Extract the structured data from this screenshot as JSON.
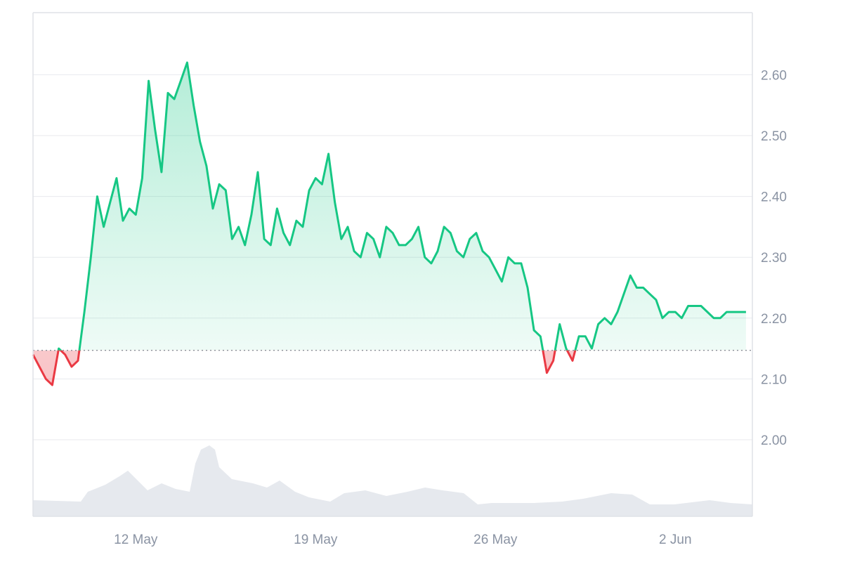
{
  "chart_data": {
    "type": "area",
    "title": "",
    "xlabel": "",
    "ylabel": "",
    "ylim": [
      1.88,
      2.72
    ],
    "xlim": [
      "2025-05-08",
      "2025-06-05"
    ],
    "grid": true,
    "legend": "none",
    "y_ticks": [
      2.0,
      2.1,
      2.2,
      2.3,
      2.4,
      2.5,
      2.6
    ],
    "y_tick_labels": [
      "2.00",
      "2.10",
      "2.20",
      "2.30",
      "2.40",
      "2.50",
      "2.60"
    ],
    "x_ticks": [
      {
        "date": "2025-05-12",
        "label": "12 May"
      },
      {
        "date": "2025-05-19",
        "label": "19 May"
      },
      {
        "date": "2025-05-26",
        "label": "26 May"
      },
      {
        "date": "2025-06-02",
        "label": "2 Jun"
      }
    ],
    "reference_value": 2.147,
    "colors": {
      "up_line": "#16c784",
      "down_line": "#ea3943",
      "up_fill": "#16c784",
      "down_fill": "#ea3943",
      "volume": "#e6e9ee"
    },
    "series": [
      {
        "type": "line",
        "x": [
          "2025-05-08 00:00",
          "2025-05-08 06:00",
          "2025-05-08 12:00",
          "2025-05-08 18:00",
          "2025-05-09 00:00",
          "2025-05-09 06:00",
          "2025-05-09 12:00",
          "2025-05-09 18:00",
          "2025-05-10 00:00",
          "2025-05-10 06:00",
          "2025-05-10 12:00",
          "2025-05-10 18:00",
          "2025-05-11 00:00",
          "2025-05-11 06:00",
          "2025-05-11 12:00",
          "2025-05-11 18:00",
          "2025-05-12 00:00",
          "2025-05-12 06:00",
          "2025-05-12 12:00",
          "2025-05-12 18:00",
          "2025-05-13 00:00",
          "2025-05-13 06:00",
          "2025-05-13 12:00",
          "2025-05-13 18:00",
          "2025-05-14 00:00",
          "2025-05-14 06:00",
          "2025-05-14 12:00",
          "2025-05-14 18:00",
          "2025-05-15 00:00",
          "2025-05-15 06:00",
          "2025-05-15 12:00",
          "2025-05-15 18:00",
          "2025-05-16 00:00",
          "2025-05-16 06:00",
          "2025-05-16 12:00",
          "2025-05-16 18:00",
          "2025-05-17 00:00",
          "2025-05-17 06:00",
          "2025-05-17 12:00",
          "2025-05-17 18:00",
          "2025-05-18 00:00",
          "2025-05-18 06:00",
          "2025-05-18 12:00",
          "2025-05-18 18:00",
          "2025-05-19 00:00",
          "2025-05-19 06:00",
          "2025-05-19 12:00",
          "2025-05-19 18:00",
          "2025-05-20 00:00",
          "2025-05-20 06:00",
          "2025-05-20 12:00",
          "2025-05-20 18:00",
          "2025-05-21 00:00",
          "2025-05-21 06:00",
          "2025-05-21 12:00",
          "2025-05-21 18:00",
          "2025-05-22 00:00",
          "2025-05-22 06:00",
          "2025-05-22 12:00",
          "2025-05-22 18:00",
          "2025-05-23 00:00",
          "2025-05-23 06:00",
          "2025-05-23 12:00",
          "2025-05-23 18:00",
          "2025-05-24 00:00",
          "2025-05-24 06:00",
          "2025-05-24 12:00",
          "2025-05-24 18:00",
          "2025-05-25 00:00",
          "2025-05-25 06:00",
          "2025-05-25 12:00",
          "2025-05-25 18:00",
          "2025-05-26 00:00",
          "2025-05-26 06:00",
          "2025-05-26 12:00",
          "2025-05-26 18:00",
          "2025-05-27 00:00",
          "2025-05-27 06:00",
          "2025-05-27 12:00",
          "2025-05-27 18:00",
          "2025-05-28 00:00",
          "2025-05-28 06:00",
          "2025-05-28 12:00",
          "2025-05-28 18:00",
          "2025-05-29 00:00",
          "2025-05-29 06:00",
          "2025-05-29 12:00",
          "2025-05-29 18:00",
          "2025-05-30 00:00",
          "2025-05-30 06:00",
          "2025-05-30 12:00",
          "2025-05-30 18:00",
          "2025-05-31 00:00",
          "2025-05-31 06:00",
          "2025-05-31 12:00",
          "2025-05-31 18:00",
          "2025-06-01 00:00",
          "2025-06-01 06:00",
          "2025-06-01 12:00",
          "2025-06-01 18:00",
          "2025-06-02 00:00",
          "2025-06-02 06:00",
          "2025-06-02 12:00",
          "2025-06-02 18:00",
          "2025-06-03 00:00",
          "2025-06-03 06:00",
          "2025-06-03 12:00",
          "2025-06-03 18:00",
          "2025-06-04 00:00",
          "2025-06-04 06:00",
          "2025-06-04 12:00",
          "2025-06-04 18:00"
        ],
        "values": [
          2.14,
          2.12,
          2.1,
          2.09,
          2.15,
          2.14,
          2.12,
          2.13,
          2.21,
          2.3,
          2.4,
          2.35,
          2.39,
          2.43,
          2.36,
          2.38,
          2.37,
          2.43,
          2.59,
          2.51,
          2.44,
          2.57,
          2.56,
          2.59,
          2.62,
          2.55,
          2.49,
          2.45,
          2.38,
          2.42,
          2.41,
          2.33,
          2.35,
          2.32,
          2.37,
          2.44,
          2.33,
          2.32,
          2.38,
          2.34,
          2.32,
          2.36,
          2.35,
          2.41,
          2.43,
          2.42,
          2.47,
          2.39,
          2.33,
          2.35,
          2.31,
          2.3,
          2.34,
          2.33,
          2.3,
          2.35,
          2.34,
          2.32,
          2.32,
          2.33,
          2.35,
          2.3,
          2.29,
          2.31,
          2.35,
          2.34,
          2.31,
          2.3,
          2.33,
          2.34,
          2.31,
          2.3,
          2.28,
          2.26,
          2.3,
          2.29,
          2.29,
          2.25,
          2.18,
          2.17,
          2.11,
          2.13,
          2.19,
          2.15,
          2.13,
          2.17,
          2.17,
          2.15,
          2.19,
          2.2,
          2.19,
          2.21,
          2.24,
          2.27,
          2.25,
          2.25,
          2.24,
          2.23,
          2.2,
          2.21,
          2.21,
          2.2,
          2.22,
          2.22,
          2.22,
          2.21,
          2.2,
          2.2,
          2.21,
          2.21,
          2.21,
          2.21
        ]
      }
    ]
  }
}
